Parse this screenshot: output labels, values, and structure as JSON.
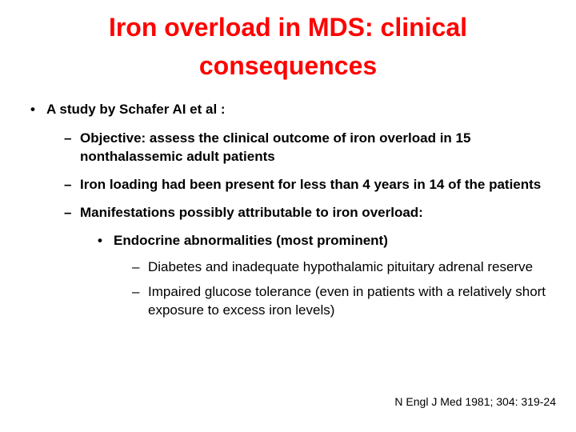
{
  "title": "Iron overload in MDS: clinical consequences",
  "bullets": {
    "b1": "A study by Schafer AI et al :",
    "b2a": "Objective: assess the clinical outcome of iron overload in 15 nonthalassemic adult patients",
    "b2b": " Iron loading had been present for less than 4 years in 14 of the patients",
    "b2c": "Manifestations possibly attributable to iron overload:",
    "b3a": "Endocrine abnormalities (most prominent)",
    "b4a": "Diabetes and inadequate hypothalamic pituitary adrenal reserve",
    "b4b": "Impaired glucose tolerance  (even in patients with a relatively short exposure to excess iron levels)"
  },
  "citation": "N Engl J Med 1981; 304: 319-24",
  "colors": {
    "title": "#ff0000",
    "body": "#000000",
    "background": "#ffffff"
  },
  "typography": {
    "title_fontsize": 32,
    "body_fontsize": 17,
    "citation_fontsize": 14,
    "family": "Arial"
  }
}
